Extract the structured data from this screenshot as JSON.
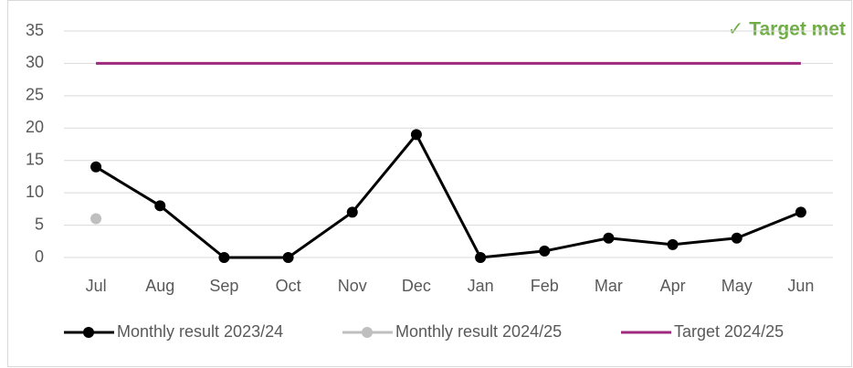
{
  "chart_data": {
    "type": "line",
    "annotation": "✓ Target met",
    "annotation_color": "#70ad47",
    "categories": [
      "Jul",
      "Aug",
      "Sep",
      "Oct",
      "Nov",
      "Dec",
      "Jan",
      "Feb",
      "Mar",
      "Apr",
      "May",
      "Jun"
    ],
    "series": [
      {
        "name": "Monthly result 2023/24",
        "color": "#000000",
        "marker": true,
        "values": [
          14,
          8,
          0,
          0,
          7,
          19,
          0,
          1,
          3,
          2,
          3,
          7
        ]
      },
      {
        "name": "Monthly result 2024/25",
        "color": "#bfbfbf",
        "marker": true,
        "values": [
          6,
          null,
          null,
          null,
          null,
          null,
          null,
          null,
          null,
          null,
          null,
          null
        ]
      },
      {
        "name": "Target 2024/25",
        "color": "#9e2a7d",
        "marker": false,
        "values": [
          30,
          30,
          30,
          30,
          30,
          30,
          30,
          30,
          30,
          30,
          30,
          30
        ]
      }
    ],
    "ylim": [
      0,
      35
    ],
    "yticks": [
      0,
      5,
      10,
      15,
      20,
      25,
      30,
      35
    ],
    "grid": true,
    "legend": "bottom"
  }
}
